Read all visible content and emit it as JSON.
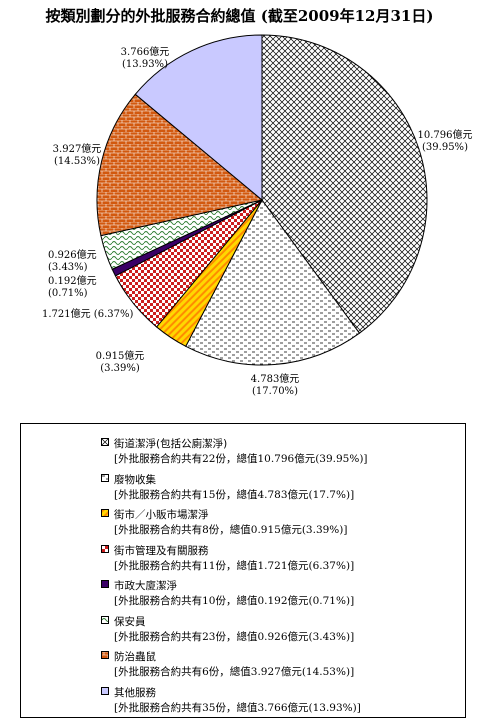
{
  "chart_data": {
    "type": "pie",
    "title": "按類別劃分的外批服務合約總值 (截至2009年12月31日)",
    "unit": "億元",
    "slices": [
      {
        "name": "街道潔淨(包括公廁潔淨)",
        "value": 10.796,
        "percent": 39.95,
        "value_label": "10.796億元",
        "percent_label": "(39.95%)",
        "desc": "[外批服務合約共有22份，總值10.796億元(39.95%)]",
        "pattern": "grid-diag",
        "color": "#000000"
      },
      {
        "name": "廢物收集",
        "value": 4.783,
        "percent": 17.7,
        "value_label": "4.783億元",
        "percent_label": "(17.70%)",
        "desc": "[外批服務合約共有15份，總值4.783億元(17.7%)]",
        "pattern": "dash",
        "color": "#000000"
      },
      {
        "name": "街市／小販市場潔淨",
        "value": 0.915,
        "percent": 3.39,
        "value_label": "0.915億元",
        "percent_label": "(3.39%)",
        "desc": "[外批服務合約共有8份，總值0.915億元(3.39%)]",
        "pattern": "stripe",
        "color": "#ffd800"
      },
      {
        "name": "街市管理及有關服務",
        "value": 1.721,
        "percent": 6.37,
        "value_label": "1.721億元",
        "percent_label": "(6.37%)",
        "desc": "[外批服務合約共有11份，總值1.721億元(6.37%)]",
        "pattern": "check",
        "color": "#cc1f1f"
      },
      {
        "name": "市政大廈潔淨",
        "value": 0.192,
        "percent": 0.71,
        "value_label": "0.192億元",
        "percent_label": "(0.71%)",
        "desc": "[外批服務合約共有10份，總值0.192億元(0.71%)]",
        "pattern": "solid",
        "color": "#3a0066"
      },
      {
        "name": "保安員",
        "value": 0.926,
        "percent": 3.43,
        "value_label": "0.926億元",
        "percent_label": "(3.43%)",
        "desc": "[外批服務合約共有23份，總值0.926億元(3.43%)]",
        "pattern": "wave",
        "color": "#2e7d32"
      },
      {
        "name": "防治蟲鼠",
        "value": 3.927,
        "percent": 14.53,
        "value_label": "3.927億元",
        "percent_label": "(14.53%)",
        "desc": "[外批服務合約共有6份，總值3.927億元(14.53%)]",
        "pattern": "brick",
        "color": "#d2580e"
      },
      {
        "name": "其他服務",
        "value": 3.766,
        "percent": 13.93,
        "value_label": "3.766億元",
        "percent_label": "(13.93%)",
        "desc": "[外批服務合約共有35份，總值3.766億元(13.93%)]",
        "pattern": "solid",
        "color": "#c9c9ff"
      }
    ]
  }
}
